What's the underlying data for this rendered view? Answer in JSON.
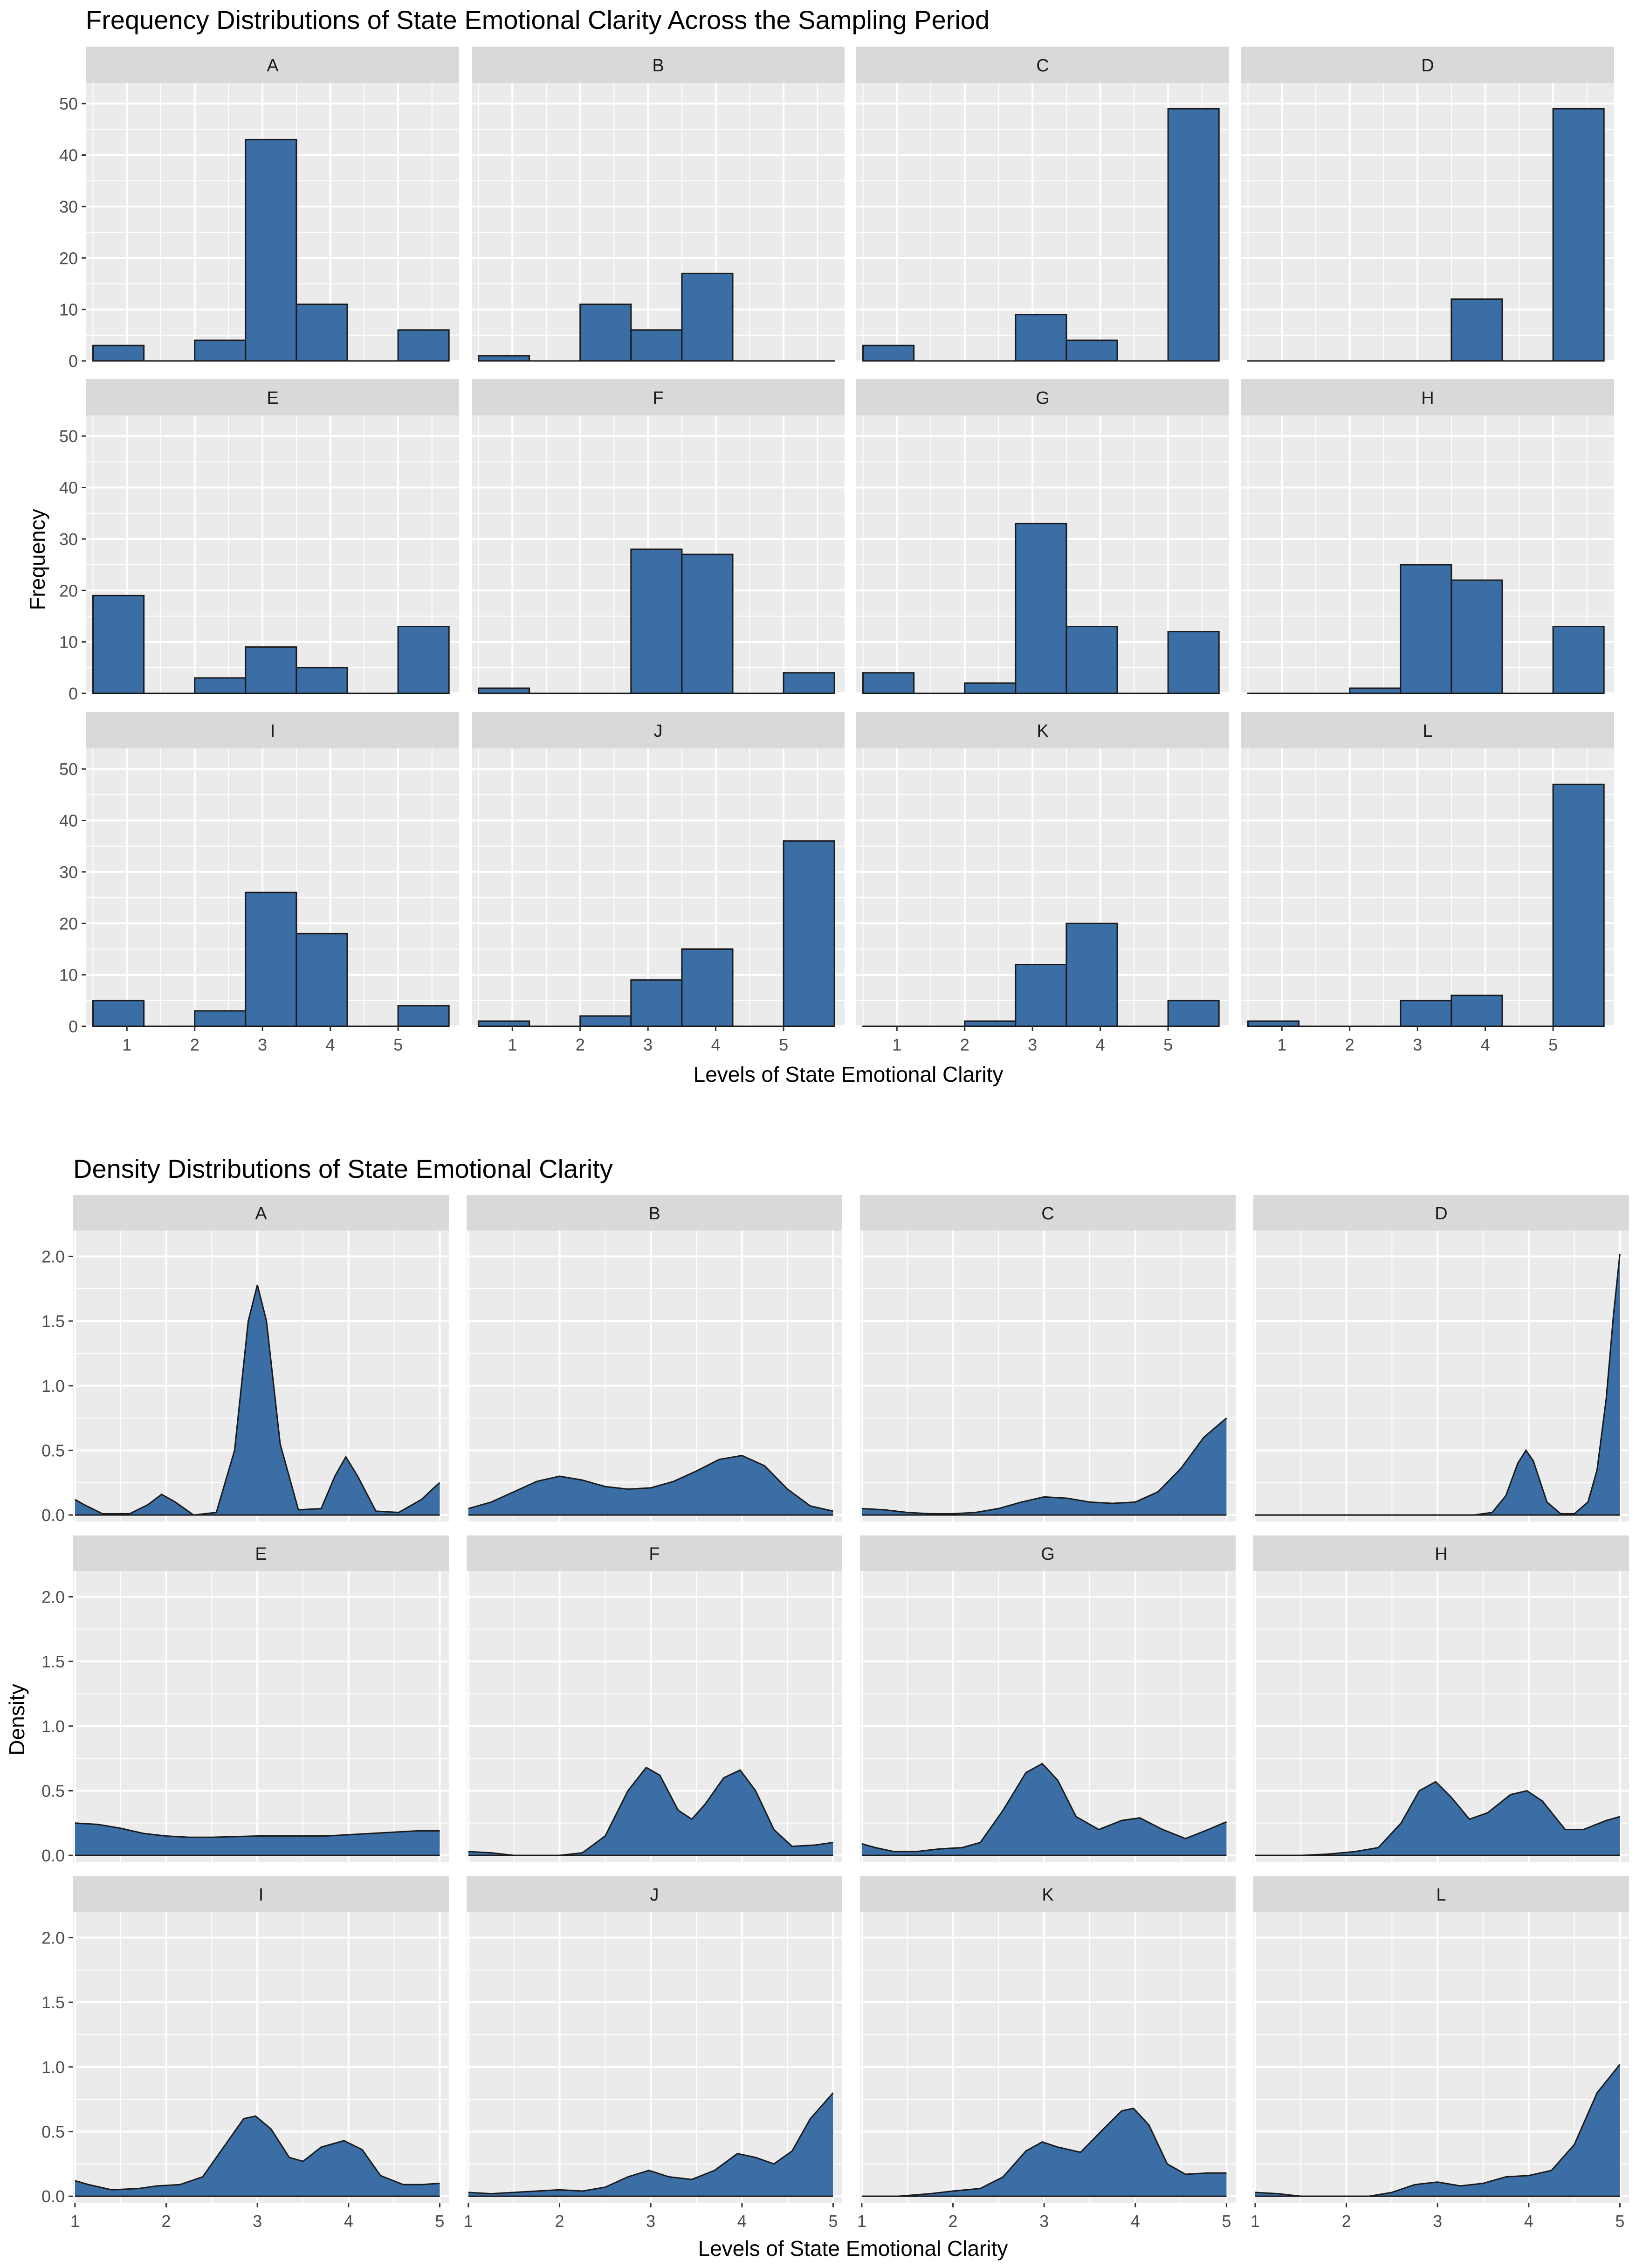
{
  "histogram": {
    "title": "Frequency Distributions of State Emotional Clarity Across the Sampling Period",
    "xlabel": "Levels of State Emotional Clarity",
    "ylabel": "Frequency",
    "y_ticks": [
      0,
      10,
      20,
      30,
      40,
      50
    ],
    "x_ticks": [
      1,
      2,
      3,
      4,
      5
    ]
  },
  "density": {
    "title": "Density Distributions of State Emotional Clarity",
    "xlabel": "Levels of State Emotional Clarity",
    "ylabel": "Density",
    "y_ticks": [
      "0.0",
      "0.5",
      "1.0",
      "1.5",
      "2.0"
    ],
    "x_ticks": [
      1,
      2,
      3,
      4,
      5
    ]
  },
  "colors": {
    "fill": "#3a6ea5",
    "panel_bg": "#ebebeb",
    "strip_bg": "#d9d9d9",
    "grid": "#ffffff"
  },
  "chart_data": [
    {
      "type": "bar",
      "title": "Frequency Distributions of State Emotional Clarity Across the Sampling Period",
      "xlabel": "Levels of State Emotional Clarity",
      "ylabel": "Frequency",
      "xlim": [
        0.4,
        5.9
      ],
      "ylim": [
        0,
        54
      ],
      "bin_edges": [
        0.5,
        1.25,
        2.0,
        2.75,
        3.5,
        4.25,
        5.0,
        5.75
      ],
      "panels": [
        {
          "label": "A",
          "counts": [
            3,
            0,
            4,
            43,
            11,
            0,
            6
          ]
        },
        {
          "label": "B",
          "counts": [
            1,
            0,
            11,
            6,
            17,
            0,
            0
          ]
        },
        {
          "label": "C",
          "counts": [
            3,
            0,
            0,
            9,
            4,
            0,
            49
          ]
        },
        {
          "label": "D",
          "counts": [
            0,
            0,
            0,
            0,
            12,
            0,
            49
          ]
        },
        {
          "label": "E",
          "counts": [
            19,
            0,
            3,
            9,
            5,
            0,
            13
          ]
        },
        {
          "label": "F",
          "counts": [
            1,
            0,
            0,
            28,
            27,
            0,
            4
          ]
        },
        {
          "label": "G",
          "counts": [
            4,
            0,
            2,
            33,
            13,
            0,
            12
          ]
        },
        {
          "label": "H",
          "counts": [
            0,
            0,
            1,
            25,
            22,
            0,
            13
          ]
        },
        {
          "label": "I",
          "counts": [
            5,
            0,
            3,
            26,
            18,
            0,
            4
          ]
        },
        {
          "label": "J",
          "counts": [
            1,
            0,
            2,
            9,
            15,
            0,
            36
          ]
        },
        {
          "label": "K",
          "counts": [
            0,
            0,
            1,
            12,
            20,
            0,
            5
          ]
        },
        {
          "label": "L",
          "counts": [
            1,
            0,
            0,
            5,
            6,
            0,
            47
          ]
        }
      ]
    },
    {
      "type": "area",
      "title": "Density Distributions of State Emotional Clarity",
      "xlabel": "Levels of State Emotional Clarity",
      "ylabel": "Density",
      "xlim": [
        0.98,
        5.1
      ],
      "ylim": [
        -0.05,
        2.2
      ],
      "x": [
        1.0,
        1.25,
        1.5,
        1.75,
        2.0,
        2.25,
        2.5,
        2.75,
        3.0,
        3.25,
        3.5,
        3.75,
        4.0,
        4.25,
        4.5,
        4.75,
        5.0
      ],
      "panels": [
        {
          "label": "A",
          "points": [
            [
              1.0,
              0.12
            ],
            [
              1.1,
              0.08
            ],
            [
              1.3,
              0.01
            ],
            [
              1.6,
              0.01
            ],
            [
              1.8,
              0.08
            ],
            [
              1.95,
              0.16
            ],
            [
              2.1,
              0.1
            ],
            [
              2.3,
              0.0
            ],
            [
              2.55,
              0.02
            ],
            [
              2.75,
              0.5
            ],
            [
              2.9,
              1.5
            ],
            [
              3.0,
              1.78
            ],
            [
              3.1,
              1.5
            ],
            [
              3.25,
              0.55
            ],
            [
              3.45,
              0.04
            ],
            [
              3.7,
              0.05
            ],
            [
              3.85,
              0.3
            ],
            [
              3.97,
              0.45
            ],
            [
              4.1,
              0.3
            ],
            [
              4.3,
              0.03
            ],
            [
              4.55,
              0.02
            ],
            [
              4.8,
              0.12
            ],
            [
              4.95,
              0.22
            ],
            [
              5.0,
              0.25
            ]
          ]
        },
        {
          "label": "B",
          "points": [
            [
              1.0,
              0.05
            ],
            [
              1.25,
              0.1
            ],
            [
              1.5,
              0.18
            ],
            [
              1.75,
              0.26
            ],
            [
              2.0,
              0.3
            ],
            [
              2.25,
              0.27
            ],
            [
              2.5,
              0.22
            ],
            [
              2.75,
              0.2
            ],
            [
              3.0,
              0.21
            ],
            [
              3.25,
              0.26
            ],
            [
              3.5,
              0.34
            ],
            [
              3.75,
              0.43
            ],
            [
              4.0,
              0.46
            ],
            [
              4.25,
              0.38
            ],
            [
              4.5,
              0.2
            ],
            [
              4.75,
              0.07
            ],
            [
              5.0,
              0.03
            ]
          ]
        },
        {
          "label": "C",
          "points": [
            [
              1.0,
              0.05
            ],
            [
              1.25,
              0.04
            ],
            [
              1.5,
              0.02
            ],
            [
              1.75,
              0.01
            ],
            [
              2.0,
              0.01
            ],
            [
              2.25,
              0.02
            ],
            [
              2.5,
              0.05
            ],
            [
              2.75,
              0.1
            ],
            [
              3.0,
              0.14
            ],
            [
              3.25,
              0.13
            ],
            [
              3.5,
              0.1
            ],
            [
              3.75,
              0.09
            ],
            [
              4.0,
              0.1
            ],
            [
              4.25,
              0.18
            ],
            [
              4.5,
              0.36
            ],
            [
              4.75,
              0.6
            ],
            [
              5.0,
              0.75
            ]
          ]
        },
        {
          "label": "D",
          "points": [
            [
              1.0,
              0.0
            ],
            [
              3.0,
              0.0
            ],
            [
              3.4,
              0.0
            ],
            [
              3.6,
              0.02
            ],
            [
              3.75,
              0.15
            ],
            [
              3.88,
              0.4
            ],
            [
              3.97,
              0.5
            ],
            [
              4.05,
              0.42
            ],
            [
              4.2,
              0.1
            ],
            [
              4.35,
              0.01
            ],
            [
              4.5,
              0.01
            ],
            [
              4.65,
              0.1
            ],
            [
              4.75,
              0.35
            ],
            [
              4.85,
              0.9
            ],
            [
              4.93,
              1.55
            ],
            [
              5.0,
              2.02
            ]
          ]
        },
        {
          "label": "E",
          "points": [
            [
              1.0,
              0.25
            ],
            [
              1.25,
              0.24
            ],
            [
              1.5,
              0.21
            ],
            [
              1.75,
              0.17
            ],
            [
              2.0,
              0.15
            ],
            [
              2.25,
              0.14
            ],
            [
              2.5,
              0.14
            ],
            [
              2.75,
              0.145
            ],
            [
              3.0,
              0.15
            ],
            [
              3.25,
              0.15
            ],
            [
              3.5,
              0.15
            ],
            [
              3.75,
              0.15
            ],
            [
              4.0,
              0.16
            ],
            [
              4.25,
              0.17
            ],
            [
              4.5,
              0.18
            ],
            [
              4.75,
              0.19
            ],
            [
              5.0,
              0.19
            ]
          ]
        },
        {
          "label": "F",
          "points": [
            [
              1.0,
              0.03
            ],
            [
              1.25,
              0.02
            ],
            [
              1.5,
              0.0
            ],
            [
              1.75,
              0.0
            ],
            [
              2.0,
              0.0
            ],
            [
              2.25,
              0.02
            ],
            [
              2.5,
              0.15
            ],
            [
              2.75,
              0.5
            ],
            [
              2.95,
              0.68
            ],
            [
              3.1,
              0.62
            ],
            [
              3.3,
              0.35
            ],
            [
              3.45,
              0.28
            ],
            [
              3.6,
              0.4
            ],
            [
              3.8,
              0.6
            ],
            [
              3.98,
              0.66
            ],
            [
              4.15,
              0.5
            ],
            [
              4.35,
              0.2
            ],
            [
              4.55,
              0.07
            ],
            [
              4.8,
              0.08
            ],
            [
              5.0,
              0.1
            ]
          ]
        },
        {
          "label": "G",
          "points": [
            [
              1.0,
              0.09
            ],
            [
              1.15,
              0.06
            ],
            [
              1.35,
              0.03
            ],
            [
              1.6,
              0.03
            ],
            [
              1.85,
              0.05
            ],
            [
              2.1,
              0.06
            ],
            [
              2.3,
              0.1
            ],
            [
              2.55,
              0.35
            ],
            [
              2.8,
              0.64
            ],
            [
              2.98,
              0.71
            ],
            [
              3.15,
              0.58
            ],
            [
              3.35,
              0.3
            ],
            [
              3.6,
              0.2
            ],
            [
              3.85,
              0.27
            ],
            [
              4.05,
              0.29
            ],
            [
              4.3,
              0.2
            ],
            [
              4.55,
              0.13
            ],
            [
              4.8,
              0.2
            ],
            [
              5.0,
              0.26
            ]
          ]
        },
        {
          "label": "H",
          "points": [
            [
              1.0,
              0.0
            ],
            [
              1.5,
              0.0
            ],
            [
              1.8,
              0.01
            ],
            [
              2.1,
              0.03
            ],
            [
              2.35,
              0.06
            ],
            [
              2.6,
              0.25
            ],
            [
              2.8,
              0.5
            ],
            [
              2.98,
              0.57
            ],
            [
              3.15,
              0.45
            ],
            [
              3.35,
              0.28
            ],
            [
              3.55,
              0.33
            ],
            [
              3.8,
              0.47
            ],
            [
              3.98,
              0.5
            ],
            [
              4.15,
              0.42
            ],
            [
              4.4,
              0.2
            ],
            [
              4.6,
              0.2
            ],
            [
              4.85,
              0.27
            ],
            [
              5.0,
              0.3
            ]
          ]
        },
        {
          "label": "I",
          "points": [
            [
              1.0,
              0.12
            ],
            [
              1.15,
              0.09
            ],
            [
              1.4,
              0.05
            ],
            [
              1.7,
              0.06
            ],
            [
              1.9,
              0.08
            ],
            [
              2.15,
              0.09
            ],
            [
              2.4,
              0.15
            ],
            [
              2.65,
              0.4
            ],
            [
              2.85,
              0.6
            ],
            [
              2.98,
              0.62
            ],
            [
              3.15,
              0.52
            ],
            [
              3.35,
              0.3
            ],
            [
              3.5,
              0.27
            ],
            [
              3.7,
              0.38
            ],
            [
              3.95,
              0.43
            ],
            [
              4.15,
              0.36
            ],
            [
              4.35,
              0.16
            ],
            [
              4.6,
              0.09
            ],
            [
              4.8,
              0.09
            ],
            [
              5.0,
              0.1
            ]
          ]
        },
        {
          "label": "J",
          "points": [
            [
              1.0,
              0.03
            ],
            [
              1.25,
              0.02
            ],
            [
              1.5,
              0.03
            ],
            [
              1.75,
              0.04
            ],
            [
              2.0,
              0.05
            ],
            [
              2.25,
              0.04
            ],
            [
              2.5,
              0.07
            ],
            [
              2.75,
              0.15
            ],
            [
              2.98,
              0.2
            ],
            [
              3.2,
              0.15
            ],
            [
              3.45,
              0.13
            ],
            [
              3.7,
              0.2
            ],
            [
              3.95,
              0.33
            ],
            [
              4.15,
              0.3
            ],
            [
              4.35,
              0.25
            ],
            [
              4.55,
              0.35
            ],
            [
              4.75,
              0.6
            ],
            [
              5.0,
              0.8
            ]
          ]
        },
        {
          "label": "K",
          "points": [
            [
              1.0,
              0.0
            ],
            [
              1.4,
              0.0
            ],
            [
              1.75,
              0.02
            ],
            [
              2.0,
              0.04
            ],
            [
              2.3,
              0.06
            ],
            [
              2.55,
              0.15
            ],
            [
              2.8,
              0.35
            ],
            [
              2.98,
              0.42
            ],
            [
              3.15,
              0.38
            ],
            [
              3.4,
              0.34
            ],
            [
              3.65,
              0.52
            ],
            [
              3.85,
              0.66
            ],
            [
              3.98,
              0.68
            ],
            [
              4.15,
              0.55
            ],
            [
              4.35,
              0.25
            ],
            [
              4.55,
              0.17
            ],
            [
              4.8,
              0.18
            ],
            [
              5.0,
              0.18
            ]
          ]
        },
        {
          "label": "L",
          "points": [
            [
              1.0,
              0.03
            ],
            [
              1.25,
              0.02
            ],
            [
              1.5,
              0.0
            ],
            [
              1.75,
              0.0
            ],
            [
              2.0,
              0.0
            ],
            [
              2.25,
              0.0
            ],
            [
              2.5,
              0.03
            ],
            [
              2.75,
              0.09
            ],
            [
              3.0,
              0.11
            ],
            [
              3.25,
              0.08
            ],
            [
              3.5,
              0.1
            ],
            [
              3.75,
              0.15
            ],
            [
              4.0,
              0.16
            ],
            [
              4.25,
              0.2
            ],
            [
              4.5,
              0.4
            ],
            [
              4.75,
              0.8
            ],
            [
              5.0,
              1.02
            ]
          ]
        }
      ]
    }
  ]
}
